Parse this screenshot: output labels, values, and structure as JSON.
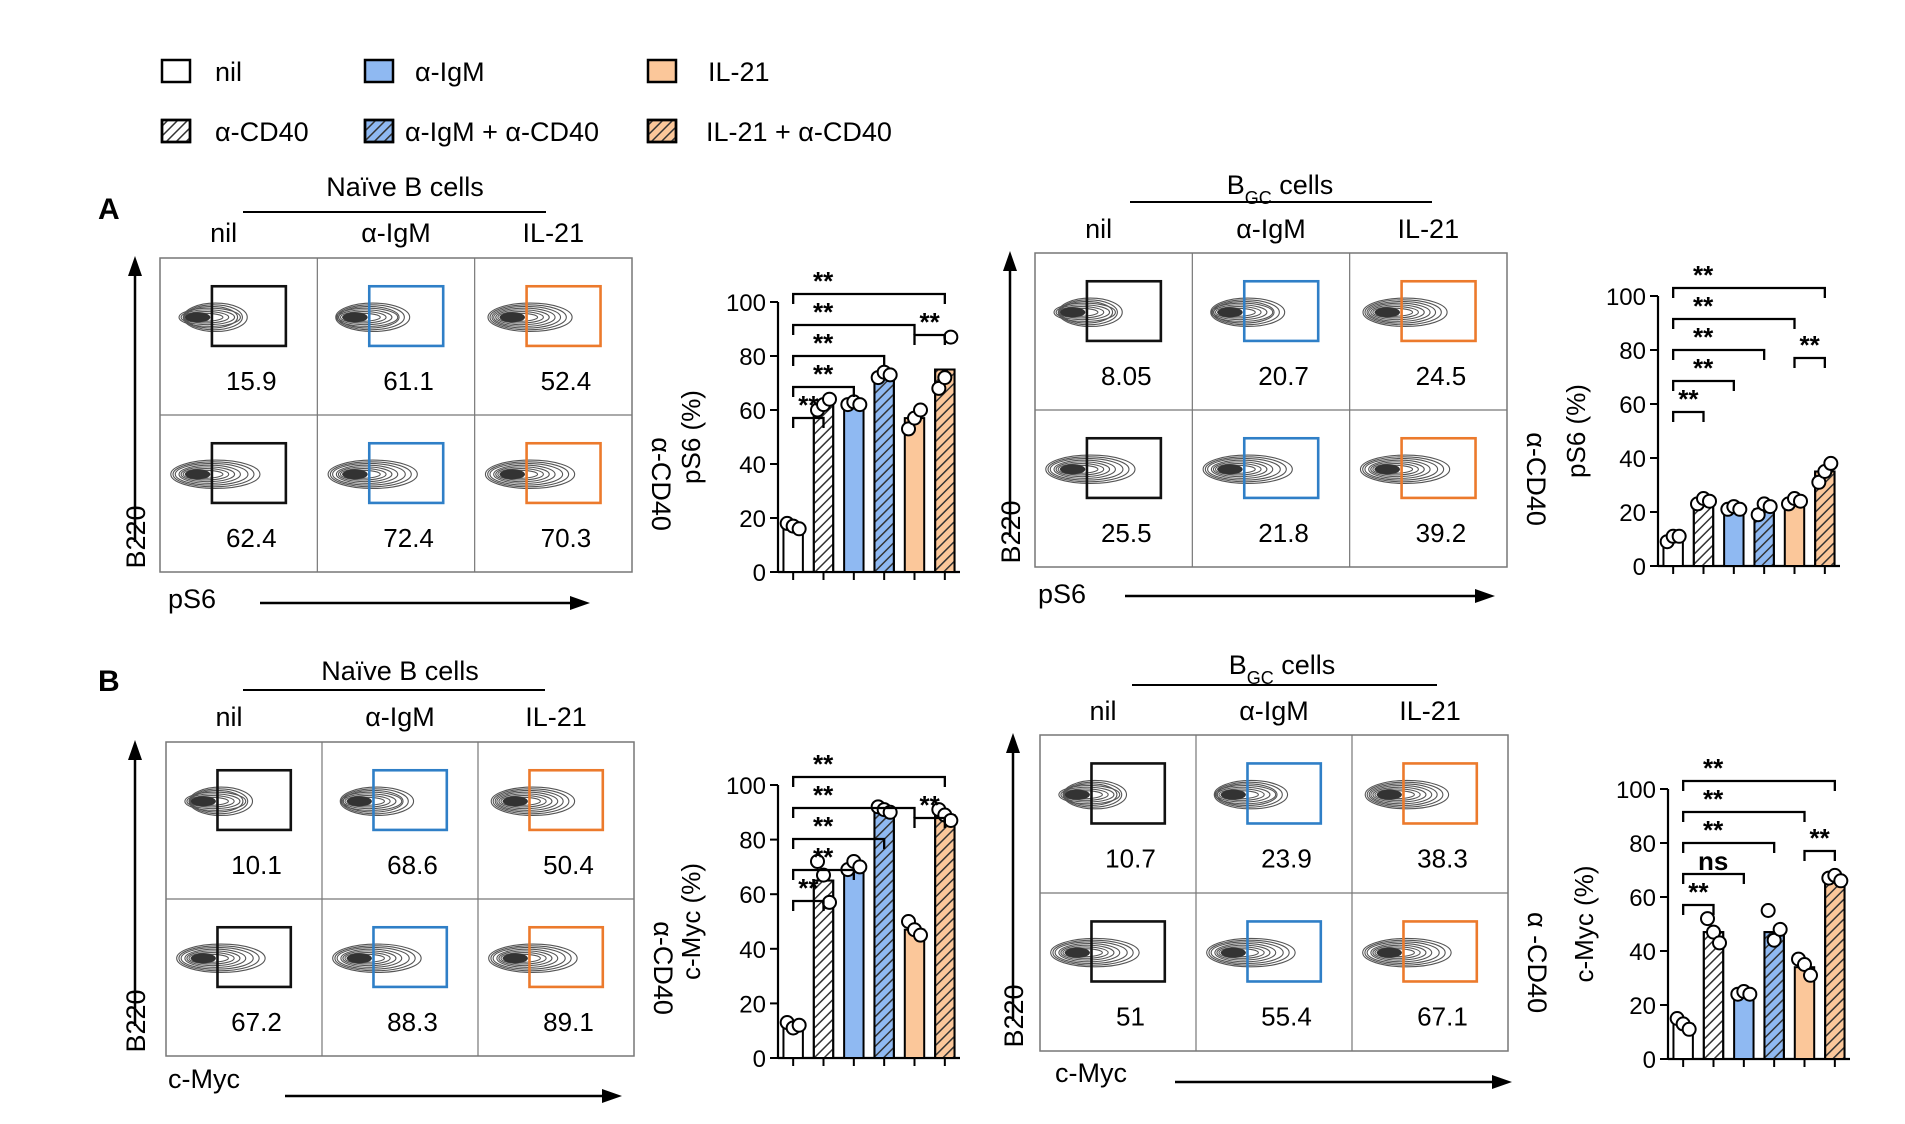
{
  "legend": [
    {
      "label": "nil",
      "fill": "#ffffff",
      "hatch": false
    },
    {
      "label": "α-IgM",
      "fill": "#8fb9f2",
      "hatch": false
    },
    {
      "label": "IL-21",
      "fill": "#fbc79a",
      "hatch": false
    },
    {
      "label": "α-CD40",
      "fill": "#ffffff",
      "hatch": true
    },
    {
      "label": "α-IgM + α-CD40",
      "fill": "#8fb9f2",
      "hatch": true
    },
    {
      "label": "IL-21 + α-CD40",
      "fill": "#fbc79a",
      "hatch": true
    }
  ],
  "colors": {
    "black_gate": "#111111",
    "blue_gate": "#2f7fc7",
    "orange_gate": "#ec7a2c"
  },
  "sig": {
    "double": "**",
    "ns": "ns"
  },
  "panels": [
    {
      "letter": "A",
      "flow": [
        {
          "title": "Naïve B cells",
          "cols": [
            "nil",
            "α-IgM",
            "IL-21"
          ],
          "side": "α-CD40",
          "ylabel": "B220",
          "xlabel": "pS6",
          "top": [
            "15.9",
            "61.1",
            "52.4"
          ],
          "bottom": [
            "62.4",
            "72.4",
            "70.3"
          ]
        },
        {
          "title_main": "B",
          "title_sub": "GC",
          "title_rest": " cells",
          "cols": [
            "nil",
            "α-IgM",
            "IL-21"
          ],
          "side": "α-CD40",
          "ylabel": "B220",
          "xlabel": "pS6",
          "top": [
            "8.05",
            "20.7",
            "24.5"
          ],
          "bottom": [
            "25.5",
            "21.8",
            "39.2"
          ]
        }
      ]
    },
    {
      "letter": "B",
      "flow": [
        {
          "title": "Naïve B cells",
          "cols": [
            "nil",
            "α-IgM",
            "IL-21"
          ],
          "side": "α-CD40",
          "ylabel": "B220",
          "xlabel": "c-Myc",
          "top": [
            "10.1",
            "68.6",
            "50.4"
          ],
          "bottom": [
            "67.2",
            "88.3",
            "89.1"
          ]
        },
        {
          "title_main": "B",
          "title_sub": "GC",
          "title_rest": " cells",
          "cols": [
            "nil",
            "α-IgM",
            "IL-21"
          ],
          "side": "α -CD40",
          "ylabel": "B220",
          "xlabel": "c-Myc",
          "top": [
            "10.7",
            "23.9",
            "38.3"
          ],
          "bottom": [
            "51",
            "55.4",
            "67.1"
          ]
        }
      ]
    }
  ],
  "chart_data": [
    {
      "type": "bar",
      "ylabel": "pS6 (%)",
      "ylim": [
        0,
        100
      ],
      "yticks": [
        "0",
        "20",
        "40",
        "60",
        "80",
        "100"
      ],
      "categories": [
        "nil",
        "α-CD40",
        "α-IgM",
        "α-IgM + α-CD40",
        "IL-21",
        "IL-21 + α-CD40"
      ],
      "values": [
        17,
        62,
        62,
        73,
        57,
        75
      ],
      "points": [
        [
          18,
          17,
          16
        ],
        [
          60,
          62,
          64
        ],
        [
          62,
          63,
          62
        ],
        [
          72,
          74,
          73
        ],
        [
          53,
          57,
          60
        ],
        [
          68,
          72,
          87
        ]
      ],
      "significance": [
        [
          0,
          1,
          "**"
        ],
        [
          0,
          2,
          "**"
        ],
        [
          0,
          3,
          "**"
        ],
        [
          0,
          4,
          "**"
        ],
        [
          0,
          5,
          "**"
        ],
        [
          4,
          5,
          "**"
        ]
      ]
    },
    {
      "type": "bar",
      "ylabel": "pS6 (%)",
      "ylim": [
        0,
        100
      ],
      "yticks": [
        "0",
        "20",
        "40",
        "60",
        "80",
        "100"
      ],
      "categories": [
        "nil",
        "α-CD40",
        "α-IgM",
        "α-IgM + α-CD40",
        "IL-21",
        "IL-21 + α-CD40"
      ],
      "values": [
        10,
        24,
        21,
        21,
        24,
        35
      ],
      "points": [
        [
          9,
          11,
          11
        ],
        [
          23,
          25,
          24
        ],
        [
          21,
          22,
          21
        ],
        [
          19,
          23,
          22
        ],
        [
          23,
          25,
          24
        ],
        [
          31,
          35,
          38
        ]
      ],
      "significance": [
        [
          0,
          1,
          "**"
        ],
        [
          0,
          2,
          "**"
        ],
        [
          0,
          3,
          "**"
        ],
        [
          0,
          4,
          "**"
        ],
        [
          0,
          5,
          "**"
        ],
        [
          4,
          5,
          "**"
        ]
      ]
    },
    {
      "type": "bar",
      "ylabel": "c-Myc (%)",
      "ylim": [
        0,
        100
      ],
      "yticks": [
        "0",
        "20",
        "40",
        "60",
        "80",
        "100"
      ],
      "categories": [
        "nil",
        "α-CD40",
        "α-IgM",
        "α-IgM + α-CD40",
        "IL-21",
        "IL-21 + α-CD40"
      ],
      "values": [
        12,
        65,
        70,
        91,
        47,
        89
      ],
      "points": [
        [
          13,
          11,
          12
        ],
        [
          72,
          67,
          57
        ],
        [
          69,
          72,
          70
        ],
        [
          92,
          91,
          90
        ],
        [
          50,
          47,
          45
        ],
        [
          91,
          89,
          87
        ]
      ],
      "significance": [
        [
          0,
          1,
          "**"
        ],
        [
          0,
          2,
          "**"
        ],
        [
          0,
          3,
          "**"
        ],
        [
          0,
          4,
          "**"
        ],
        [
          0,
          5,
          "**"
        ],
        [
          4,
          5,
          "**"
        ]
      ]
    },
    {
      "type": "bar",
      "ylabel": "c-Myc (%)",
      "ylim": [
        0,
        100
      ],
      "yticks": [
        "0",
        "20",
        "40",
        "60",
        "80",
        "100"
      ],
      "categories": [
        "nil",
        "α-CD40",
        "α-IgM",
        "α-IgM + α-CD40",
        "IL-21",
        "IL-21 + α-CD40"
      ],
      "values": [
        13,
        47,
        24,
        47,
        34,
        66
      ],
      "points": [
        [
          15,
          13,
          11
        ],
        [
          52,
          47,
          43
        ],
        [
          24,
          25,
          24
        ],
        [
          55,
          44,
          48
        ],
        [
          37,
          35,
          31
        ],
        [
          67,
          68,
          66
        ]
      ],
      "significance": [
        [
          0,
          1,
          "**"
        ],
        [
          0,
          2,
          "ns"
        ],
        [
          0,
          3,
          "**"
        ],
        [
          0,
          4,
          "**"
        ],
        [
          0,
          5,
          "**"
        ],
        [
          4,
          5,
          "**"
        ]
      ]
    }
  ]
}
